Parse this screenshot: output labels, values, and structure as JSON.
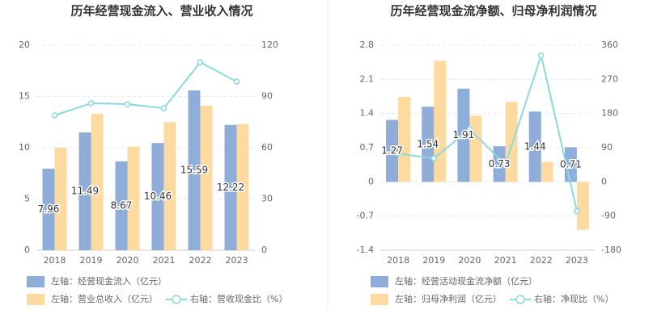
{
  "chart_data": [
    {
      "type": "bar",
      "title": "历年经营现金流入、营业收入情况",
      "categories": [
        "2018",
        "2019",
        "2020",
        "2021",
        "2022",
        "2023"
      ],
      "series": [
        {
          "name": "左轴：经营现金流入（亿元）",
          "color": "#8fadd9",
          "values": [
            7.96,
            11.49,
            8.67,
            10.46,
            15.59,
            12.22
          ],
          "data_labels": true
        },
        {
          "name": "左轴：营业总收入（亿元）",
          "color": "#fddba0",
          "values": [
            10.0,
            13.3,
            10.1,
            12.5,
            14.1,
            12.3
          ]
        },
        {
          "name": "右轴：营收现金比（%）",
          "color": "#8dd8dc",
          "type": "line",
          "axis": "y2",
          "values": [
            78.9,
            86.0,
            85.5,
            83.1,
            110,
            98.7
          ]
        }
      ],
      "ylim": [
        0,
        20
      ],
      "yticks": [
        0,
        5,
        10,
        15,
        20
      ],
      "y2lim": [
        0,
        120
      ],
      "y2ticks": [
        0,
        30,
        60,
        90,
        120
      ],
      "grid": true
    },
    {
      "type": "bar",
      "title": "历年经营现金流净额、归母净利润情况",
      "categories": [
        "2018",
        "2019",
        "2020",
        "2021",
        "2022",
        "2023"
      ],
      "series": [
        {
          "name": "左轴：经营活动现金流净额（亿元）",
          "color": "#8fadd9",
          "values": [
            1.27,
            1.54,
            1.91,
            0.73,
            1.44,
            0.71
          ],
          "data_labels": true
        },
        {
          "name": "左轴：归母净利润（亿元）",
          "color": "#fddba0",
          "values": [
            1.74,
            2.48,
            1.36,
            1.64,
            0.41,
            -0.98
          ]
        },
        {
          "name": "右轴：净现比（%）",
          "color": "#8dd8dc",
          "type": "line",
          "axis": "y2",
          "values": [
            74.6,
            62,
            139,
            45,
            333,
            -77
          ]
        }
      ],
      "ylim": [
        -1.4,
        2.8
      ],
      "yticks": [
        -1.4,
        -0.7,
        0,
        0.7,
        1.4,
        2.1,
        2.8
      ],
      "y2lim": [
        -180,
        360
      ],
      "y2ticks": [
        -180,
        -90,
        0,
        90,
        180,
        270,
        360
      ],
      "grid": true
    }
  ]
}
